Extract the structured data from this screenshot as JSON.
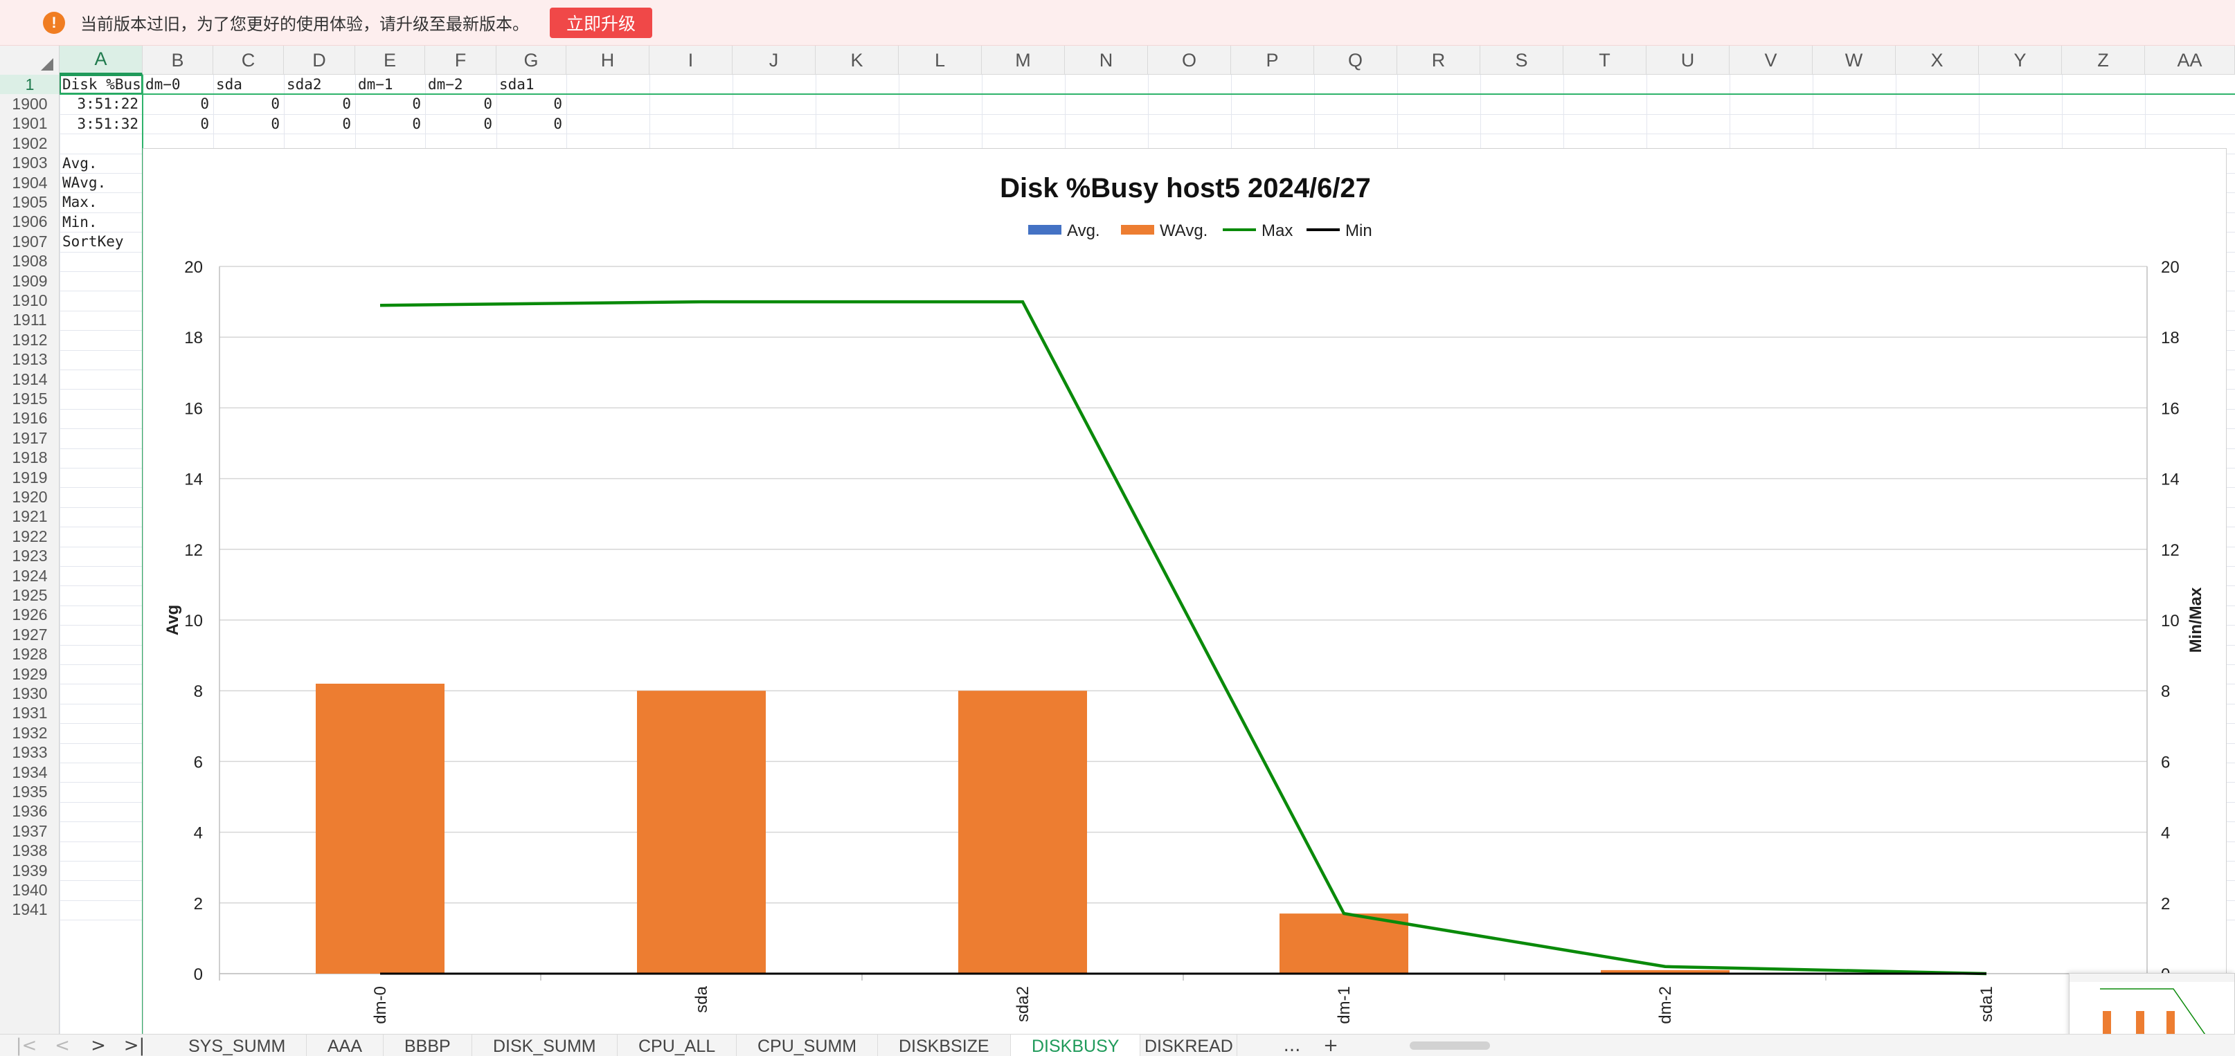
{
  "notice": {
    "message": "当前版本过旧，为了您更好的使用体验，请升级至最新版本。",
    "upgrade_label": "立即升级",
    "icon": "warning-icon"
  },
  "columns": [
    "A",
    "B",
    "C",
    "D",
    "E",
    "F",
    "G",
    "H",
    "I",
    "J",
    "K",
    "L",
    "M",
    "N",
    "O",
    "P",
    "Q",
    "R",
    "S",
    "T",
    "U",
    "V",
    "W",
    "X",
    "Y",
    "Z",
    "AA"
  ],
  "rows": [
    "1",
    "1900",
    "1901",
    "1902",
    "1903",
    "1904",
    "1905",
    "1906",
    "1907",
    "1908",
    "1909",
    "1910",
    "1911",
    "1912",
    "1913",
    "1914",
    "1915",
    "1916",
    "1917",
    "1918",
    "1919",
    "1920",
    "1921",
    "1922",
    "1923",
    "1924",
    "1925",
    "1926",
    "1927",
    "1928",
    "1929",
    "1930",
    "1931",
    "1932",
    "1933",
    "1934",
    "1935",
    "1936",
    "1937",
    "1938",
    "1939",
    "1940",
    "1941"
  ],
  "sheet": {
    "header_row": [
      "Disk  %Busy",
      "dm−0",
      "sda",
      "sda2",
      "dm−1",
      "dm−2",
      "sda1"
    ],
    "data_rows": [
      [
        "3:51:22",
        "0",
        "0",
        "0",
        "0",
        "0",
        "0"
      ],
      [
        "3:51:32",
        "0",
        "0",
        "0",
        "0",
        "0",
        "0"
      ]
    ],
    "labels": [
      "Avg.",
      "WAvg.",
      "Max.",
      "Min.",
      "SortKey"
    ]
  },
  "chart_data": {
    "type": "bar",
    "title": "Disk %Busy host5  2024/6/27",
    "categories": [
      "dm-0",
      "sda",
      "sda2",
      "dm-1",
      "dm-2",
      "sda1"
    ],
    "series": [
      {
        "name": "Avg.",
        "kind": "bar",
        "axis": "left",
        "color": "#4472c4",
        "values": [
          0.05,
          0,
          0,
          0,
          0,
          0
        ]
      },
      {
        "name": "WAvg.",
        "kind": "bar",
        "axis": "left",
        "color": "#ed7d31",
        "values": [
          8.2,
          8.0,
          8.0,
          1.7,
          0.1,
          0
        ]
      },
      {
        "name": "Max",
        "kind": "line",
        "axis": "right",
        "color": "#0a8a0a",
        "values": [
          18.9,
          19.0,
          19.0,
          1.7,
          0.2,
          0
        ]
      },
      {
        "name": "Min",
        "kind": "line",
        "axis": "right",
        "color": "#000000",
        "values": [
          0,
          0,
          0,
          0,
          0,
          0
        ]
      }
    ],
    "ylabel": "Avg",
    "y2label": "Min/Max",
    "ylim": [
      0,
      20
    ],
    "y2lim": [
      0,
      20
    ],
    "yticks": [
      "0",
      "2",
      "4",
      "6",
      "8",
      "10",
      "12",
      "14",
      "16",
      "18",
      "20"
    ],
    "grid": true,
    "legend": "top"
  },
  "tabs": [
    "SYS_SUMM",
    "AAA",
    "BBBP",
    "DISK_SUMM",
    "CPU_ALL",
    "CPU_SUMM",
    "DISKBSIZE",
    "DISKBUSY",
    "DISKREAD"
  ],
  "active_tab": "DISKBUSY",
  "tabbar": {
    "more": "...",
    "add": "+",
    "first": "|<",
    "prev": "<",
    "next": ">",
    "last": ">|"
  }
}
